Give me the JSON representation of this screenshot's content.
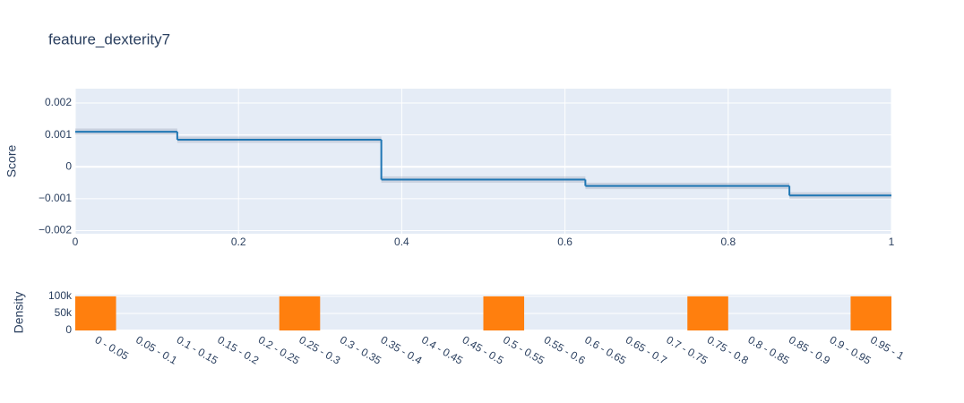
{
  "chart_data": [
    {
      "type": "line",
      "title": "feature_dexterity7",
      "ylabel": "Score",
      "x": [
        0,
        0.125,
        0.375,
        0.625,
        0.875
      ],
      "values": [
        0.0011,
        0.00085,
        -0.0004,
        -0.0006,
        -0.0009
      ],
      "upper": [
        0.0012,
        0.00095,
        -0.0003,
        -0.0005,
        -0.0008
      ],
      "lower": [
        0.001,
        0.00075,
        -0.0005,
        -0.0007,
        -0.001
      ],
      "color": "#1f77b4",
      "band_color": "rgba(150,160,180,0.35)",
      "xlim": [
        0,
        1
      ],
      "xticks": [
        0,
        0.2,
        0.4,
        0.6,
        0.8,
        1
      ],
      "ylim": [
        -0.0021,
        0.00245
      ],
      "yticks": [
        {
          "value": -0.002,
          "label": "−0.002"
        },
        {
          "value": -0.001,
          "label": "−0.001"
        },
        0,
        0.001,
        0.002
      ],
      "grid": true
    },
    {
      "type": "bar",
      "ylabel": "Density",
      "categories": [
        "0 - 0.05",
        "0.05 - 0.1",
        "0.1 - 0.15",
        "0.15 - 0.2",
        "0.2 - 0.25",
        "0.25 - 0.3",
        "0.3 - 0.35",
        "0.35 - 0.4",
        "0.4 - 0.45",
        "0.45 - 0.5",
        "0.5 - 0.55",
        "0.55 - 0.6",
        "0.6 - 0.65",
        "0.65 - 0.7",
        "0.7 - 0.75",
        "0.75 - 0.8",
        "0.8 - 0.85",
        "0.85 - 0.9",
        "0.9 - 0.95",
        "0.95 - 1"
      ],
      "values": [
        100000,
        0,
        0,
        0,
        0,
        100000,
        0,
        0,
        0,
        0,
        100000,
        0,
        0,
        0,
        0,
        100000,
        0,
        0,
        0,
        100000
      ],
      "color": "#ff7f0e",
      "ylim": [
        0,
        105000
      ],
      "yticks": [
        0,
        {
          "value": 50000,
          "label": "50k"
        },
        {
          "value": 100000,
          "label": "100k"
        }
      ],
      "grid": true
    }
  ]
}
